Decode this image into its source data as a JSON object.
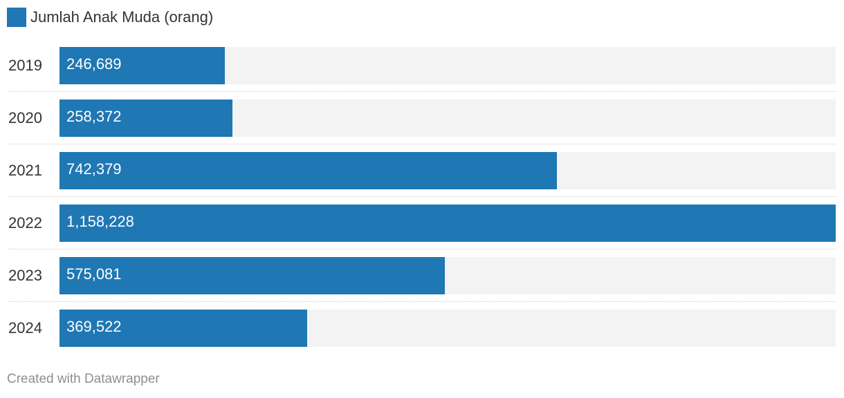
{
  "colors": {
    "bar": "#1f77b4",
    "track": "#f3f3f3"
  },
  "legend": {
    "label": "Jumlah Anak Muda (orang)"
  },
  "chart_data": {
    "type": "bar",
    "orientation": "horizontal",
    "categories": [
      "2019",
      "2020",
      "2021",
      "2022",
      "2023",
      "2024"
    ],
    "series": [
      {
        "name": "Jumlah Anak Muda (orang)",
        "values": [
          246689,
          258372,
          742379,
          1158228,
          575081,
          369522
        ]
      }
    ],
    "value_labels": [
      "246,689",
      "258,372",
      "742,379",
      "1,158,228",
      "575,081",
      "369,522"
    ],
    "xlim": [
      0,
      1158228
    ],
    "grid": false,
    "legend_position": "top-left"
  },
  "footer": {
    "credit": "Created with Datawrapper"
  }
}
